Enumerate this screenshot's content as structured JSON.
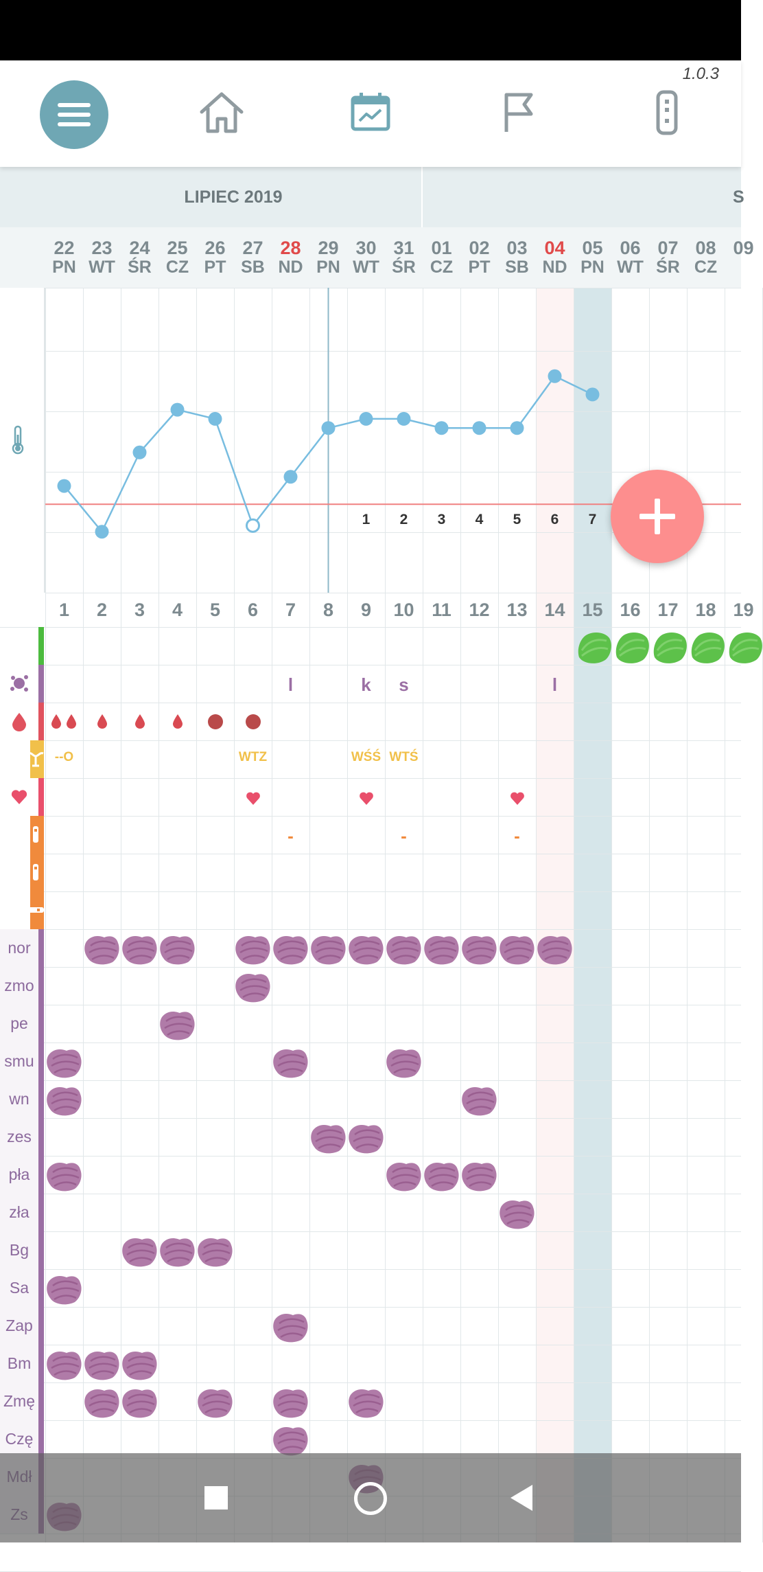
{
  "version": "1.0.3",
  "toolbar": {
    "items": [
      {
        "name": "menu-icon"
      },
      {
        "name": "home-icon"
      },
      {
        "name": "calendar-chart-icon"
      },
      {
        "name": "flag-icon"
      },
      {
        "name": "thermometer-device-icon"
      }
    ]
  },
  "month": {
    "label": "LIPIEC 2019",
    "next_partial": "S"
  },
  "days": [
    {
      "num": "22",
      "wk": "PN"
    },
    {
      "num": "23",
      "wk": "WT"
    },
    {
      "num": "24",
      "wk": "ŚR"
    },
    {
      "num": "25",
      "wk": "CZ"
    },
    {
      "num": "26",
      "wk": "PT"
    },
    {
      "num": "27",
      "wk": "SB"
    },
    {
      "num": "28",
      "wk": "ND"
    },
    {
      "num": "29",
      "wk": "PN"
    },
    {
      "num": "30",
      "wk": "WT"
    },
    {
      "num": "31",
      "wk": "ŚR"
    },
    {
      "num": "01",
      "wk": "CZ"
    },
    {
      "num": "02",
      "wk": "PT"
    },
    {
      "num": "03",
      "wk": "SB"
    },
    {
      "num": "04",
      "wk": "ND"
    },
    {
      "num": "05",
      "wk": "PN"
    },
    {
      "num": "06",
      "wk": "WT"
    },
    {
      "num": "07",
      "wk": "ŚR"
    },
    {
      "num": "08",
      "wk": "CZ"
    },
    {
      "num": "09",
      "wk": ""
    }
  ],
  "sunday_days": [
    6,
    13
  ],
  "today_index": 14,
  "cycle_days": [
    "1",
    "2",
    "3",
    "4",
    "5",
    "6",
    "7",
    "8",
    "9",
    "10",
    "11",
    "12",
    "13",
    "14",
    "15",
    "16",
    "17",
    "18",
    "19"
  ],
  "temperature": {
    "points": [
      {
        "day": 0,
        "level": 0.35
      },
      {
        "day": 1,
        "level": 0.2
      },
      {
        "day": 2,
        "level": 0.46
      },
      {
        "day": 3,
        "level": 0.6
      },
      {
        "day": 4,
        "level": 0.57
      },
      {
        "day": 5,
        "level": 0.22,
        "open": true
      },
      {
        "day": 6,
        "level": 0.38
      },
      {
        "day": 7,
        "level": 0.54
      },
      {
        "day": 8,
        "level": 0.57
      },
      {
        "day": 9,
        "level": 0.57
      },
      {
        "day": 10,
        "level": 0.54
      },
      {
        "day": 11,
        "level": 0.54
      },
      {
        "day": 12,
        "level": 0.54
      },
      {
        "day": 13,
        "level": 0.71
      },
      {
        "day": 14,
        "level": 0.65
      }
    ],
    "coverline_level": 0.29,
    "phase_labels": [
      {
        "day": 8,
        "text": "1"
      },
      {
        "day": 9,
        "text": "2"
      },
      {
        "day": 10,
        "text": "3"
      },
      {
        "day": 11,
        "text": "4"
      },
      {
        "day": 12,
        "text": "5"
      },
      {
        "day": 13,
        "text": "6"
      },
      {
        "day": 14,
        "text": "7"
      }
    ],
    "marker_day": 7
  },
  "fertile_days": [
    14,
    15,
    16,
    17,
    18
  ],
  "rows": [
    {
      "icon": "green-bar",
      "color": "#4cbb3e"
    },
    {
      "icon": "splat-icon",
      "color": "#9b6fa4",
      "marks": [
        {
          "day": 6,
          "text": "l"
        },
        {
          "day": 8,
          "text": "k"
        },
        {
          "day": 9,
          "text": "s"
        },
        {
          "day": 13,
          "text": "l"
        }
      ]
    },
    {
      "icon": "blood-drop-icon",
      "color": "#e0525e"
    },
    {
      "icon": "uterus-icon",
      "color": "#f1c04a",
      "marks": [
        {
          "day": 0,
          "text": "--O"
        },
        {
          "day": 5,
          "text": "WTZ"
        },
        {
          "day": 8,
          "text": "WŚŚ"
        },
        {
          "day": 9,
          "text": "WTŚ"
        }
      ]
    },
    {
      "icon": "heart-icon",
      "color": "#e94f6b",
      "hearts": [
        5,
        8,
        12
      ]
    },
    {
      "icon": "test-stick-icon",
      "color": "#f08a3c",
      "marks": [
        {
          "day": 6,
          "text": "-"
        },
        {
          "day": 9,
          "text": "-"
        },
        {
          "day": 12,
          "text": "-"
        }
      ]
    },
    {
      "icon": "test-stick-icon",
      "color": "#f08a3c"
    },
    {
      "icon": "pregnancy-test-icon",
      "color": "#f08a3c"
    }
  ],
  "symptom_rows": [
    {
      "label": "nor",
      "days": [
        1,
        2,
        3,
        5,
        6,
        7,
        8,
        9,
        10,
        11,
        12,
        13
      ]
    },
    {
      "label": "zmo",
      "days": [
        5
      ]
    },
    {
      "label": "pe",
      "days": [
        3
      ]
    },
    {
      "label": "smu",
      "days": [
        0,
        6,
        9
      ]
    },
    {
      "label": "wn",
      "days": [
        0,
        11
      ]
    },
    {
      "label": "zes",
      "days": [
        7,
        8
      ]
    },
    {
      "label": "pła",
      "days": [
        0,
        9,
        10,
        11
      ]
    },
    {
      "label": "zła",
      "days": [
        12
      ]
    },
    {
      "label": "Bg",
      "days": [
        2,
        3,
        4
      ]
    },
    {
      "label": "Sa",
      "days": [
        0
      ]
    },
    {
      "label": "Zap",
      "days": [
        6
      ]
    },
    {
      "label": "Bm",
      "days": [
        0,
        1,
        2
      ]
    },
    {
      "label": "Zmę",
      "days": [
        1,
        2,
        4,
        6,
        8
      ]
    },
    {
      "label": "Czę",
      "days": [
        6
      ]
    },
    {
      "label": "Mdł",
      "days": [
        8
      ]
    },
    {
      "label": "Zs",
      "days": [
        0
      ]
    }
  ],
  "bleeding": [
    {
      "day": 0,
      "type": "double"
    },
    {
      "day": 1,
      "type": "drop"
    },
    {
      "day": 2,
      "type": "drop"
    },
    {
      "day": 3,
      "type": "drop"
    },
    {
      "day": 4,
      "type": "dot"
    },
    {
      "day": 5,
      "type": "dot"
    }
  ],
  "colors": {
    "accent": "#6fa7b4",
    "temp_line": "#78bde0",
    "coverline": "#f08080",
    "symptom": "#b07ba8",
    "fertile": "#5dc14a",
    "fab": "#fd8e8e"
  },
  "fab_label": "+"
}
